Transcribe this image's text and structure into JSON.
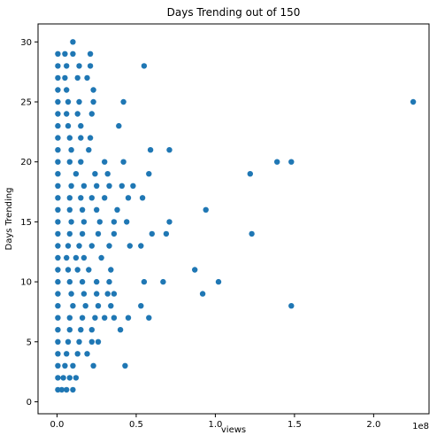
{
  "chart_data": {
    "type": "scatter",
    "title": "Days Trending out of 150",
    "xlabel": "views",
    "ylabel": "Days Trending",
    "x_offset_label": "1e8",
    "xlim": [
      -12000000.0,
      235000000.0
    ],
    "ylim": [
      -1,
      31.5
    ],
    "x_ticks": [
      0,
      50000000.0,
      100000000.0,
      150000000.0,
      200000000.0
    ],
    "x_tick_labels": [
      "0.0",
      "0.5",
      "1.0",
      "1.5",
      "2.0"
    ],
    "y_ticks": [
      0,
      5,
      10,
      15,
      20,
      25,
      30
    ],
    "y_tick_labels": [
      "0",
      "5",
      "10",
      "15",
      "20",
      "25",
      "30"
    ],
    "grid": false,
    "legend": "none",
    "marker_color": "#1f77b4",
    "points": [
      {
        "x": 500000,
        "y": 1
      },
      {
        "x": 3000000,
        "y": 1
      },
      {
        "x": 6000000,
        "y": 1
      },
      {
        "x": 10000000,
        "y": 1
      },
      {
        "x": 500000,
        "y": 2
      },
      {
        "x": 4000000,
        "y": 2
      },
      {
        "x": 8000000,
        "y": 2
      },
      {
        "x": 12000000,
        "y": 2
      },
      {
        "x": 500000,
        "y": 3
      },
      {
        "x": 5000000,
        "y": 3
      },
      {
        "x": 10000000,
        "y": 3
      },
      {
        "x": 23000000,
        "y": 3
      },
      {
        "x": 43000000,
        "y": 3
      },
      {
        "x": 500000,
        "y": 4
      },
      {
        "x": 6000000,
        "y": 4
      },
      {
        "x": 13000000,
        "y": 4
      },
      {
        "x": 19000000,
        "y": 4
      },
      {
        "x": 500000,
        "y": 5
      },
      {
        "x": 7000000,
        "y": 5
      },
      {
        "x": 14000000,
        "y": 5
      },
      {
        "x": 22000000,
        "y": 5
      },
      {
        "x": 26000000,
        "y": 5
      },
      {
        "x": 500000,
        "y": 6
      },
      {
        "x": 8000000,
        "y": 6
      },
      {
        "x": 15000000,
        "y": 6
      },
      {
        "x": 22000000,
        "y": 6
      },
      {
        "x": 40000000,
        "y": 6
      },
      {
        "x": 500000,
        "y": 7
      },
      {
        "x": 8000000,
        "y": 7
      },
      {
        "x": 16000000,
        "y": 7
      },
      {
        "x": 24000000,
        "y": 7
      },
      {
        "x": 30000000,
        "y": 7
      },
      {
        "x": 36000000,
        "y": 7
      },
      {
        "x": 45000000,
        "y": 7
      },
      {
        "x": 58000000,
        "y": 7
      },
      {
        "x": 500000,
        "y": 8
      },
      {
        "x": 10000000,
        "y": 8
      },
      {
        "x": 18000000,
        "y": 8
      },
      {
        "x": 26000000,
        "y": 8
      },
      {
        "x": 34000000,
        "y": 8
      },
      {
        "x": 53000000,
        "y": 8
      },
      {
        "x": 148000000,
        "y": 8
      },
      {
        "x": 500000,
        "y": 9
      },
      {
        "x": 9000000,
        "y": 9
      },
      {
        "x": 17000000,
        "y": 9
      },
      {
        "x": 25000000,
        "y": 9
      },
      {
        "x": 32000000,
        "y": 9
      },
      {
        "x": 36000000,
        "y": 9
      },
      {
        "x": 92000000,
        "y": 9
      },
      {
        "x": 500000,
        "y": 10
      },
      {
        "x": 8000000,
        "y": 10
      },
      {
        "x": 16000000,
        "y": 10
      },
      {
        "x": 25000000,
        "y": 10
      },
      {
        "x": 33000000,
        "y": 10
      },
      {
        "x": 55000000,
        "y": 10
      },
      {
        "x": 67000000,
        "y": 10
      },
      {
        "x": 102000000,
        "y": 10
      },
      {
        "x": 500000,
        "y": 11
      },
      {
        "x": 7000000,
        "y": 11
      },
      {
        "x": 13000000,
        "y": 11
      },
      {
        "x": 20000000,
        "y": 11
      },
      {
        "x": 34000000,
        "y": 11
      },
      {
        "x": 87000000,
        "y": 11
      },
      {
        "x": 500000,
        "y": 12
      },
      {
        "x": 6000000,
        "y": 12
      },
      {
        "x": 12000000,
        "y": 12
      },
      {
        "x": 17000000,
        "y": 12
      },
      {
        "x": 28000000,
        "y": 12
      },
      {
        "x": 500000,
        "y": 13
      },
      {
        "x": 7000000,
        "y": 13
      },
      {
        "x": 14000000,
        "y": 13
      },
      {
        "x": 22000000,
        "y": 13
      },
      {
        "x": 33000000,
        "y": 13
      },
      {
        "x": 46000000,
        "y": 13
      },
      {
        "x": 53000000,
        "y": 13
      },
      {
        "x": 500000,
        "y": 14
      },
      {
        "x": 8000000,
        "y": 14
      },
      {
        "x": 16000000,
        "y": 14
      },
      {
        "x": 26000000,
        "y": 14
      },
      {
        "x": 36000000,
        "y": 14
      },
      {
        "x": 60000000,
        "y": 14
      },
      {
        "x": 69000000,
        "y": 14
      },
      {
        "x": 123000000,
        "y": 14
      },
      {
        "x": 500000,
        "y": 15
      },
      {
        "x": 9000000,
        "y": 15
      },
      {
        "x": 17000000,
        "y": 15
      },
      {
        "x": 27000000,
        "y": 15
      },
      {
        "x": 36000000,
        "y": 15
      },
      {
        "x": 44000000,
        "y": 15
      },
      {
        "x": 71000000,
        "y": 15
      },
      {
        "x": 500000,
        "y": 16
      },
      {
        "x": 8000000,
        "y": 16
      },
      {
        "x": 16000000,
        "y": 16
      },
      {
        "x": 25000000,
        "y": 16
      },
      {
        "x": 38000000,
        "y": 16
      },
      {
        "x": 94000000,
        "y": 16
      },
      {
        "x": 500000,
        "y": 17
      },
      {
        "x": 8000000,
        "y": 17
      },
      {
        "x": 15000000,
        "y": 17
      },
      {
        "x": 22000000,
        "y": 17
      },
      {
        "x": 30000000,
        "y": 17
      },
      {
        "x": 45000000,
        "y": 17
      },
      {
        "x": 54000000,
        "y": 17
      },
      {
        "x": 500000,
        "y": 18
      },
      {
        "x": 9000000,
        "y": 18
      },
      {
        "x": 17000000,
        "y": 18
      },
      {
        "x": 25000000,
        "y": 18
      },
      {
        "x": 33000000,
        "y": 18
      },
      {
        "x": 41000000,
        "y": 18
      },
      {
        "x": 48000000,
        "y": 18
      },
      {
        "x": 500000,
        "y": 19
      },
      {
        "x": 12000000,
        "y": 19
      },
      {
        "x": 24000000,
        "y": 19
      },
      {
        "x": 32000000,
        "y": 19
      },
      {
        "x": 58000000,
        "y": 19
      },
      {
        "x": 122000000,
        "y": 19
      },
      {
        "x": 500000,
        "y": 20
      },
      {
        "x": 8000000,
        "y": 20
      },
      {
        "x": 15000000,
        "y": 20
      },
      {
        "x": 30000000,
        "y": 20
      },
      {
        "x": 42000000,
        "y": 20
      },
      {
        "x": 139000000,
        "y": 20
      },
      {
        "x": 148000000,
        "y": 20
      },
      {
        "x": 500000,
        "y": 21
      },
      {
        "x": 9000000,
        "y": 21
      },
      {
        "x": 20000000,
        "y": 21
      },
      {
        "x": 59000000,
        "y": 21
      },
      {
        "x": 71000000,
        "y": 21
      },
      {
        "x": 500000,
        "y": 22
      },
      {
        "x": 8000000,
        "y": 22
      },
      {
        "x": 15000000,
        "y": 22
      },
      {
        "x": 21000000,
        "y": 22
      },
      {
        "x": 500000,
        "y": 23
      },
      {
        "x": 7000000,
        "y": 23
      },
      {
        "x": 15000000,
        "y": 23
      },
      {
        "x": 39000000,
        "y": 23
      },
      {
        "x": 500000,
        "y": 24
      },
      {
        "x": 6000000,
        "y": 24
      },
      {
        "x": 13000000,
        "y": 24
      },
      {
        "x": 22000000,
        "y": 24
      },
      {
        "x": 500000,
        "y": 25
      },
      {
        "x": 7000000,
        "y": 25
      },
      {
        "x": 14000000,
        "y": 25
      },
      {
        "x": 23000000,
        "y": 25
      },
      {
        "x": 42000000,
        "y": 25
      },
      {
        "x": 225000000,
        "y": 25
      },
      {
        "x": 500000,
        "y": 26
      },
      {
        "x": 6000000,
        "y": 26
      },
      {
        "x": 23000000,
        "y": 26
      },
      {
        "x": 500000,
        "y": 27
      },
      {
        "x": 5000000,
        "y": 27
      },
      {
        "x": 13000000,
        "y": 27
      },
      {
        "x": 19000000,
        "y": 27
      },
      {
        "x": 500000,
        "y": 28
      },
      {
        "x": 6000000,
        "y": 28
      },
      {
        "x": 14000000,
        "y": 28
      },
      {
        "x": 21000000,
        "y": 28
      },
      {
        "x": 55000000,
        "y": 28
      },
      {
        "x": 500000,
        "y": 29
      },
      {
        "x": 5000000,
        "y": 29
      },
      {
        "x": 10000000,
        "y": 29
      },
      {
        "x": 21000000,
        "y": 29
      },
      {
        "x": 10000000,
        "y": 30
      }
    ]
  }
}
